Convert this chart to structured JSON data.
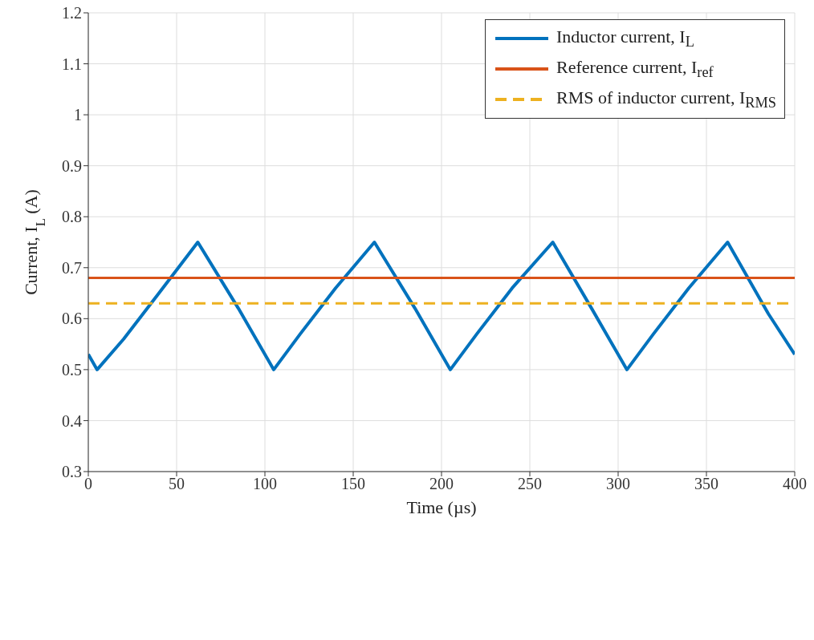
{
  "chart_data": {
    "type": "line",
    "xlabel": "Time (µs)",
    "ylabel": "Current, I$_{L}$ (A)",
    "xlim": [
      0,
      400
    ],
    "xticks": [
      0,
      50,
      100,
      150,
      200,
      250,
      300,
      350,
      400
    ],
    "ylim": [
      0.3,
      1.2
    ],
    "yticks": [
      0.3,
      0.4,
      0.5,
      0.6,
      0.7,
      0.8,
      0.9,
      1,
      1.1,
      1.2
    ],
    "grid": true,
    "legend": "top right",
    "marker": "none",
    "series": [
      {
        "name": "Inductor current, I$_{L}$",
        "color": "#0072bd",
        "x": [
          0,
          5,
          20,
          40,
          62,
          85,
          105,
          120,
          140,
          162,
          185,
          205,
          220,
          240,
          263,
          285,
          305,
          320,
          340,
          362,
          385,
          400
        ],
        "values": [
          0.53,
          0.5,
          0.56,
          0.65,
          0.75,
          0.62,
          0.5,
          0.57,
          0.66,
          0.75,
          0.62,
          0.5,
          0.57,
          0.66,
          0.75,
          0.62,
          0.5,
          0.57,
          0.66,
          0.75,
          0.61,
          0.53
        ]
      },
      {
        "name": "Reference current, I$_{ref}$",
        "color": "#d95319",
        "x": [
          0,
          400
        ],
        "values": [
          0.68,
          0.68
        ]
      },
      {
        "name": "RMS of inductor current, I$_{RMS}$",
        "color": "#edb120",
        "line_style": "dashed",
        "x": [
          0,
          400
        ],
        "values": [
          0.63,
          0.63
        ]
      }
    ]
  }
}
